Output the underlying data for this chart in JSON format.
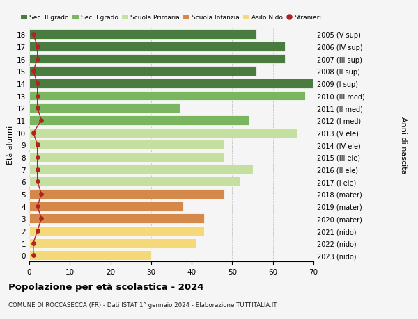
{
  "ages": [
    18,
    17,
    16,
    15,
    14,
    13,
    12,
    11,
    10,
    9,
    8,
    7,
    6,
    5,
    4,
    3,
    2,
    1,
    0
  ],
  "years": [
    "2005 (V sup)",
    "2006 (IV sup)",
    "2007 (III sup)",
    "2008 (II sup)",
    "2009 (I sup)",
    "2010 (III med)",
    "2011 (II med)",
    "2012 (I med)",
    "2013 (V ele)",
    "2014 (IV ele)",
    "2015 (III ele)",
    "2016 (II ele)",
    "2017 (I ele)",
    "2018 (mater)",
    "2019 (mater)",
    "2020 (mater)",
    "2021 (nido)",
    "2022 (nido)",
    "2023 (nido)"
  ],
  "values": [
    56,
    63,
    63,
    56,
    70,
    68,
    37,
    54,
    66,
    48,
    48,
    55,
    52,
    48,
    38,
    43,
    43,
    41,
    30
  ],
  "stranieri": [
    1,
    2,
    2,
    1,
    2,
    2,
    2,
    3,
    1,
    2,
    2,
    2,
    2,
    3,
    2,
    3,
    2,
    1,
    1
  ],
  "bar_colors": [
    "#4a7c3f",
    "#4a7c3f",
    "#4a7c3f",
    "#4a7c3f",
    "#4a7c3f",
    "#7ab560",
    "#7ab560",
    "#7ab560",
    "#c5dfa0",
    "#c5dfa0",
    "#c5dfa0",
    "#c5dfa0",
    "#c5dfa0",
    "#d4884a",
    "#d4884a",
    "#d4884a",
    "#f5d87a",
    "#f5d87a",
    "#f5d87a"
  ],
  "legend_labels": [
    "Sec. II grado",
    "Sec. I grado",
    "Scuola Primaria",
    "Scuola Infanzia",
    "Asilo Nido",
    "Stranieri"
  ],
  "legend_colors": [
    "#4a7c3f",
    "#7ab560",
    "#c5dfa0",
    "#d4884a",
    "#f5d87a",
    "#b22222"
  ],
  "stranieri_color": "#b22222",
  "title": "Popolazione per età scolastica - 2024",
  "subtitle": "COMUNE DI ROCCASECCA (FR) - Dati ISTAT 1° gennaio 2024 - Elaborazione TUTTITALIA.IT",
  "ylabel_left": "Età alunni",
  "ylabel_right": "Anni di nascita",
  "xlim": [
    0,
    70
  ],
  "xticks": [
    0,
    10,
    20,
    30,
    40,
    50,
    60,
    70
  ],
  "bg_color": "#f5f5f5",
  "plot_bg_color": "#f5f5f5"
}
